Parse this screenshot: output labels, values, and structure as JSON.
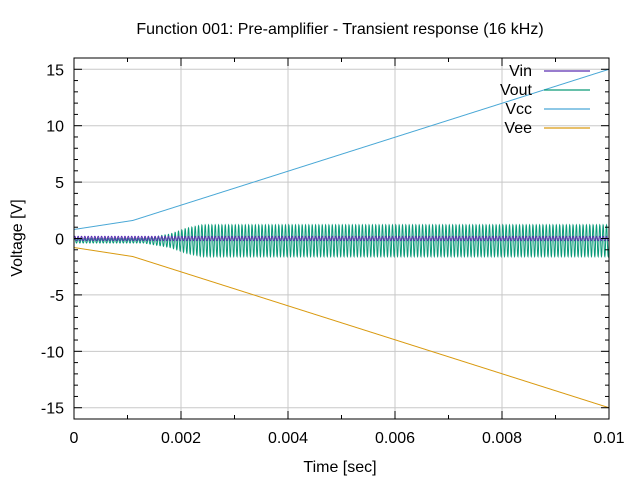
{
  "chart_data": {
    "type": "line",
    "title": "Function 001: Pre-amplifier - Transient response (16 kHz)",
    "xlabel": "Time [sec]",
    "ylabel": "Voltage [V]",
    "xlim": [
      0,
      0.01
    ],
    "ylim": [
      -16,
      16
    ],
    "xticks": [
      0,
      0.002,
      0.004,
      0.006,
      0.008,
      0.01
    ],
    "xtick_labels": [
      "0",
      "0.002",
      "0.004",
      "0.006",
      "0.008",
      "0.01"
    ],
    "yticks": [
      -15,
      -10,
      -5,
      0,
      5,
      10,
      15
    ],
    "ytick_labels": [
      "-15",
      "-10",
      "-5",
      "0",
      "5",
      "10",
      "15"
    ],
    "grid": true,
    "legend_position": "top-right",
    "frequency_hz": 16000,
    "series": [
      {
        "name": "Vin",
        "color": "#5a2fb0",
        "kind": "sine",
        "amplitude": 0.2,
        "offset": 0
      },
      {
        "name": "Vout",
        "color": "#0a9a78",
        "kind": "amplified-sine",
        "points": [
          [
            0,
            0.2
          ],
          [
            0.0013,
            0.2
          ],
          [
            0.0018,
            0.6
          ],
          [
            0.0021,
            1.1
          ],
          [
            0.0024,
            1.4
          ],
          [
            0.01,
            1.4
          ]
        ],
        "offset": -0.2
      },
      {
        "name": "Vcc",
        "color": "#4aa8d6",
        "kind": "line",
        "points": [
          [
            0,
            0.8
          ],
          [
            0.0011,
            1.6
          ],
          [
            0.01,
            15.0
          ]
        ]
      },
      {
        "name": "Vee",
        "color": "#d99a10",
        "kind": "line",
        "points": [
          [
            0,
            -0.8
          ],
          [
            0.0011,
            -1.6
          ],
          [
            0.01,
            -15.0
          ]
        ]
      }
    ]
  }
}
